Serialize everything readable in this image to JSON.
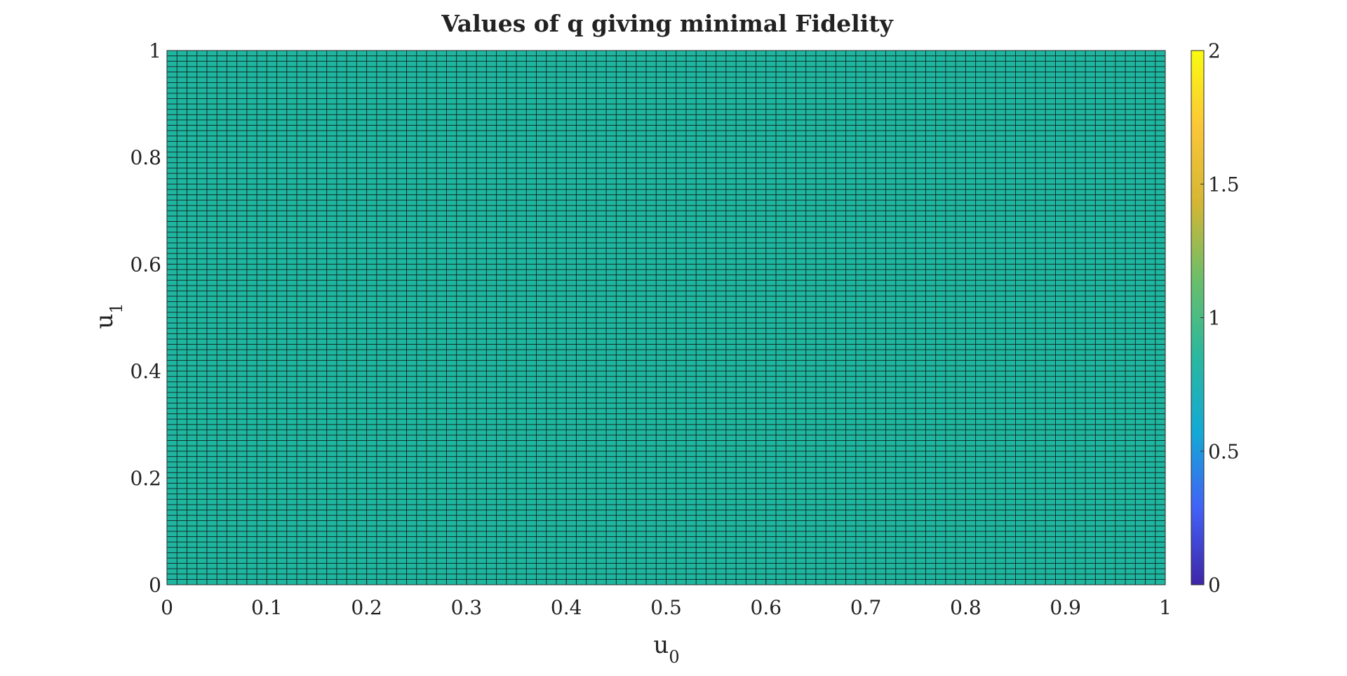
{
  "chart_data": {
    "type": "heatmap",
    "title": "Values of q giving minimal Fidelity",
    "xlabel": {
      "base": "u",
      "sub": "0"
    },
    "ylabel": {
      "base": "u",
      "sub": "1"
    },
    "xlim": [
      0,
      1
    ],
    "ylim": [
      0,
      1
    ],
    "x_ticks": [
      "0",
      "0.1",
      "0.2",
      "0.3",
      "0.4",
      "0.5",
      "0.6",
      "0.7",
      "0.8",
      "0.9",
      "1"
    ],
    "y_ticks": [
      "0",
      "0.2",
      "0.4",
      "0.6",
      "0.8",
      "1"
    ],
    "grid_x_count": 101,
    "grid_y_count": 101,
    "cell_value": 1,
    "color_range": [
      0,
      2
    ],
    "colorbar_ticks": [
      "0",
      "0.5",
      "1",
      "1.5",
      "2"
    ],
    "colormap": "parula",
    "colormap_stops": [
      "#3e26a8",
      "#4261f7",
      "#14a9d5",
      "#2bb89e",
      "#6bbe6a",
      "#d4b634",
      "#fbc638",
      "#f9fb0e"
    ],
    "cell_color": "#1fb6a0",
    "edge_color": "#0f1a18"
  }
}
